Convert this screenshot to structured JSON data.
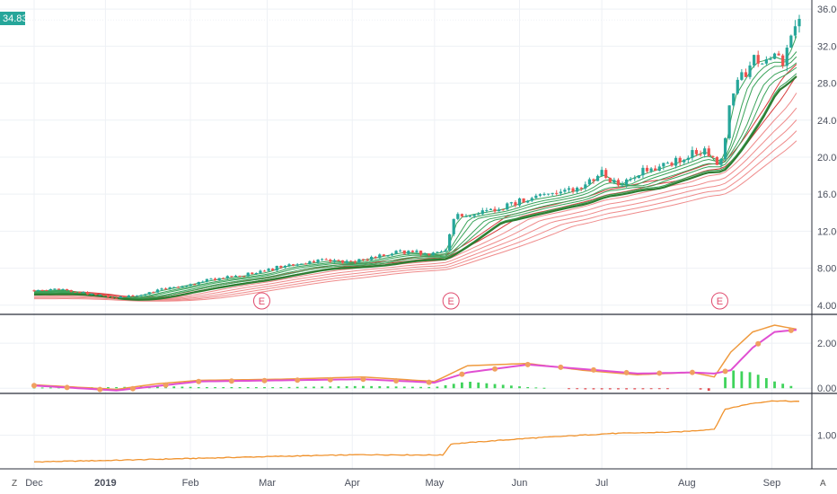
{
  "chart_data": [
    {
      "type": "candlestick",
      "panel": "price",
      "ylim": [
        3.2,
        36.6
      ],
      "y_ticks": [
        "36.00",
        "32.00",
        "28.00",
        "24.00",
        "20.00",
        "16.00",
        "12.00",
        "8.00",
        "4.00"
      ],
      "y_tick_values": [
        36,
        32,
        28,
        24,
        20,
        16,
        12,
        8,
        4
      ],
      "last_price_label": "34.83",
      "last_price": 34.83,
      "earnings_markers": [
        {
          "label": "E",
          "date": 83
        },
        {
          "label": "E",
          "date": 152
        },
        {
          "label": "E",
          "date": 250
        }
      ],
      "close_path": [
        [
          0,
          5.6
        ],
        [
          10,
          5.7
        ],
        [
          20,
          5.2
        ],
        [
          30,
          4.8
        ],
        [
          37,
          5.0
        ],
        [
          45,
          5.6
        ],
        [
          55,
          6.2
        ],
        [
          65,
          6.8
        ],
        [
          75,
          7.2
        ],
        [
          84,
          7.6
        ],
        [
          91,
          8.3
        ],
        [
          100,
          8.6
        ],
        [
          108,
          8.9
        ],
        [
          115,
          8.7
        ],
        [
          125,
          9.3
        ],
        [
          134,
          9.8
        ],
        [
          145,
          9.6
        ],
        [
          150,
          10.0
        ],
        [
          153,
          13.5
        ],
        [
          160,
          14.0
        ],
        [
          170,
          14.5
        ],
        [
          180,
          15.5
        ],
        [
          190,
          16.0
        ],
        [
          200,
          16.8
        ],
        [
          207,
          18.5
        ],
        [
          212,
          17.0
        ],
        [
          218,
          18.0
        ],
        [
          225,
          18.7
        ],
        [
          233,
          19.5
        ],
        [
          240,
          20.3
        ],
        [
          245,
          21.0
        ],
        [
          248,
          19.3
        ],
        [
          251,
          19.8
        ],
        [
          254,
          26.5
        ],
        [
          258,
          28.5
        ],
        [
          262,
          30.5
        ],
        [
          266,
          30.8
        ],
        [
          270,
          31.3
        ],
        [
          273,
          30.2
        ],
        [
          277,
          33.5
        ],
        [
          279,
          34.83
        ]
      ],
      "x_ticks": [
        {
          "label": "Dec",
          "date": 0
        },
        {
          "label": "2019",
          "date": 26
        },
        {
          "label": "Feb",
          "date": 57
        },
        {
          "label": "Mar",
          "date": 85
        },
        {
          "label": "Apr",
          "date": 116
        },
        {
          "label": "May",
          "date": 146
        },
        {
          "label": "Jun",
          "date": 177
        },
        {
          "label": "Jul",
          "date": 207
        },
        {
          "label": "Aug",
          "date": 238
        },
        {
          "label": "Sep",
          "date": 269
        }
      ]
    },
    {
      "type": "line",
      "panel": "oscillator",
      "ylim": [
        -0.15,
        3.2
      ],
      "y_ticks": [
        "2.00",
        "0.00"
      ],
      "y_tick_values": [
        2,
        0
      ],
      "series": [
        {
          "color": "#ef9a3e",
          "points": [
            [
              0,
              0.15
            ],
            [
              30,
              -0.05
            ],
            [
              45,
              0.2
            ],
            [
              60,
              0.35
            ],
            [
              90,
              0.4
            ],
            [
              120,
              0.5
            ],
            [
              146,
              0.3
            ],
            [
              158,
              1.0
            ],
            [
              180,
              1.1
            ],
            [
              200,
              0.8
            ],
            [
              220,
              0.6
            ],
            [
              240,
              0.7
            ],
            [
              248,
              0.5
            ],
            [
              254,
              1.6
            ],
            [
              262,
              2.5
            ],
            [
              270,
              2.8
            ],
            [
              279,
              2.6
            ]
          ]
        },
        {
          "color": "#e04fd2",
          "points": [
            [
              0,
              0.12
            ],
            [
              30,
              -0.1
            ],
            [
              45,
              0.1
            ],
            [
              60,
              0.3
            ],
            [
              90,
              0.35
            ],
            [
              120,
              0.4
            ],
            [
              146,
              0.25
            ],
            [
              158,
              0.7
            ],
            [
              180,
              1.05
            ],
            [
              200,
              0.85
            ],
            [
              220,
              0.65
            ],
            [
              240,
              0.7
            ],
            [
              248,
              0.65
            ],
            [
              254,
              0.8
            ],
            [
              262,
              1.8
            ],
            [
              270,
              2.5
            ],
            [
              279,
              2.6
            ]
          ]
        }
      ]
    },
    {
      "type": "line",
      "panel": "lower",
      "ylim": [
        0.2,
        2.0
      ],
      "y_ticks": [
        "1.00"
      ],
      "y_tick_values": [
        1
      ],
      "series": [
        {
          "color": "#f0922c",
          "points": [
            [
              0,
              0.33
            ],
            [
              30,
              0.37
            ],
            [
              60,
              0.42
            ],
            [
              90,
              0.47
            ],
            [
              120,
              0.51
            ],
            [
              149,
              0.5
            ],
            [
              152,
              0.78
            ],
            [
              180,
              0.92
            ],
            [
              210,
              1.04
            ],
            [
              235,
              1.08
            ],
            [
              248,
              1.15
            ],
            [
              252,
              1.65
            ],
            [
              262,
              1.8
            ],
            [
              270,
              1.86
            ],
            [
              279,
              1.84
            ]
          ]
        }
      ]
    }
  ],
  "axis_badges": {
    "left": "Z",
    "right": "A"
  }
}
